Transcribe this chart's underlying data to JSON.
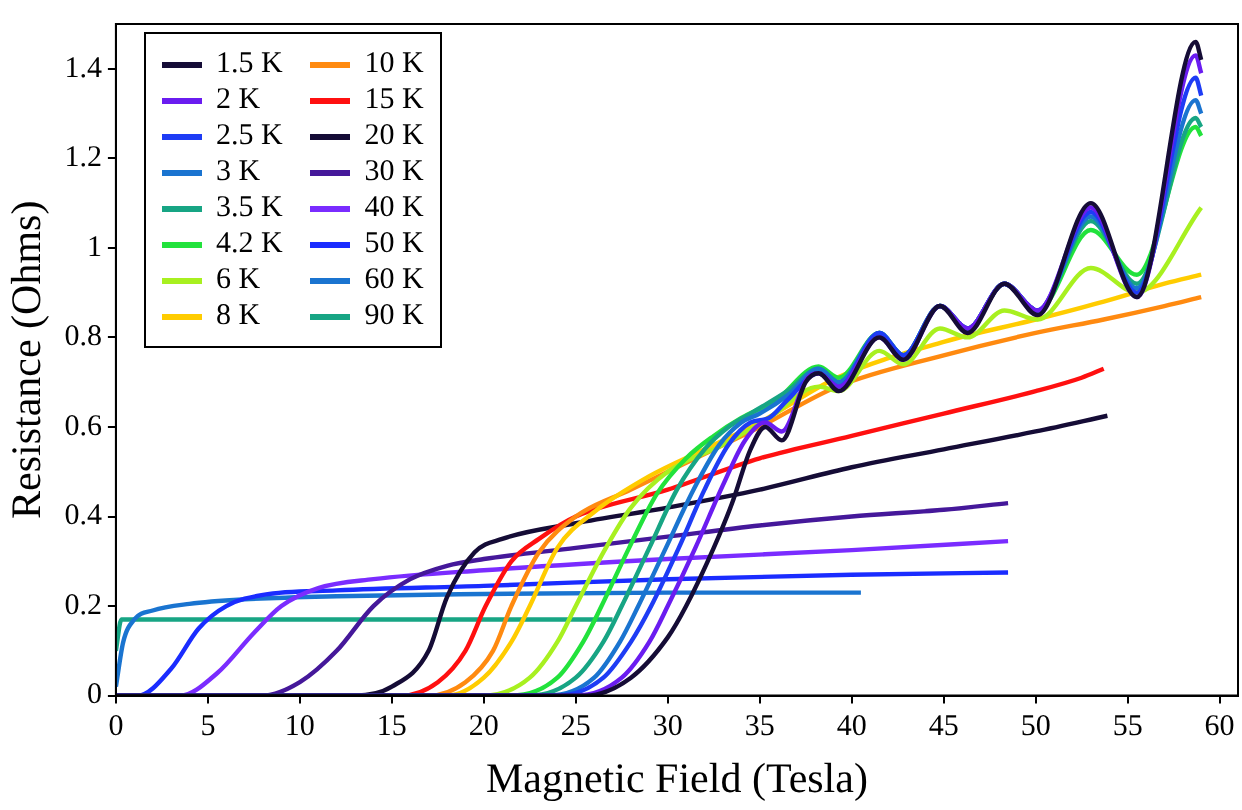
{
  "chart_data": {
    "type": "line",
    "xlabel": "Magnetic Field (Tesla)",
    "ylabel": "Resistance (Ohms)",
    "xlim": [
      0,
      61
    ],
    "ylim": [
      0,
      1.5
    ],
    "xticks": [
      0,
      5,
      10,
      15,
      20,
      25,
      30,
      35,
      40,
      45,
      50,
      55,
      60
    ],
    "yticks": [
      0,
      0.2,
      0.4,
      0.6,
      0.8,
      1,
      1.2,
      1.4
    ],
    "grid": false,
    "legend": "top left",
    "marker": "none",
    "line_style": "solid",
    "series": [
      {
        "name": "1.5 K",
        "color": "#150c36",
        "x": [
          0,
          25.5,
          28,
          30,
          31,
          32.5,
          33.5,
          34.5,
          35.3,
          36.2,
          37.5,
          38.2,
          39.3,
          41.5,
          42.8,
          44.8,
          46.3,
          48.3,
          50.1,
          53,
          55.5,
          58.7,
          59
        ],
        "values": [
          0,
          0,
          0.04,
          0.13,
          0.2,
          0.33,
          0.43,
          0.55,
          0.6,
          0.57,
          0.7,
          0.72,
          0.68,
          0.8,
          0.75,
          0.87,
          0.81,
          0.92,
          0.85,
          1.1,
          0.89,
          1.46,
          1.42
        ]
      },
      {
        "name": "2 K",
        "color": "#6a1cf0",
        "x": [
          0,
          25,
          27.5,
          29,
          30,
          31.5,
          33,
          34.2,
          35.3,
          36.2,
          37.6,
          38.2,
          39.3,
          41.5,
          42.8,
          44.8,
          46.3,
          48.3,
          50.1,
          53,
          55.5,
          58.7,
          59
        ],
        "values": [
          0,
          0,
          0.04,
          0.12,
          0.2,
          0.33,
          0.47,
          0.57,
          0.61,
          0.59,
          0.71,
          0.72,
          0.69,
          0.8,
          0.75,
          0.87,
          0.82,
          0.92,
          0.86,
          1.09,
          0.89,
          1.43,
          1.39
        ]
      },
      {
        "name": "2.5 K",
        "color": "#1e3cf5",
        "x": [
          0,
          24,
          26.5,
          28,
          29.1,
          30.6,
          32,
          33.3,
          34.5,
          35.5,
          36.5,
          38.2,
          39.3,
          41.5,
          42.8,
          44.8,
          46.3,
          48.3,
          50.1,
          53,
          55.5,
          58.7,
          59
        ],
        "values": [
          0,
          0,
          0.04,
          0.12,
          0.2,
          0.33,
          0.46,
          0.56,
          0.61,
          0.62,
          0.66,
          0.72,
          0.69,
          0.81,
          0.76,
          0.87,
          0.82,
          0.92,
          0.86,
          1.08,
          0.9,
          1.38,
          1.34
        ]
      },
      {
        "name": "3 K",
        "color": "#1a74d0",
        "x": [
          0,
          23.5,
          26,
          27.4,
          28.4,
          29.9,
          31.4,
          32.8,
          34,
          35,
          36.5,
          38.2,
          39.3,
          41.5,
          42.8,
          44.8,
          46.3,
          48.3,
          50.1,
          53,
          55.5,
          58.7,
          59
        ],
        "values": [
          0,
          0,
          0.04,
          0.12,
          0.2,
          0.33,
          0.46,
          0.56,
          0.61,
          0.63,
          0.67,
          0.73,
          0.7,
          0.81,
          0.76,
          0.87,
          0.82,
          0.92,
          0.86,
          1.07,
          0.91,
          1.33,
          1.3
        ]
      },
      {
        "name": "3.5 K",
        "color": "#17a584",
        "x": [
          0,
          22.5,
          25,
          26.5,
          27.5,
          29,
          30.5,
          32,
          33.3,
          34.5,
          36.5,
          38.2,
          39.3,
          41.5,
          42.8,
          44.8,
          46.3,
          48.3,
          50.1,
          53,
          55.5,
          58.7,
          59
        ],
        "values": [
          0,
          0,
          0.04,
          0.12,
          0.2,
          0.33,
          0.46,
          0.55,
          0.6,
          0.63,
          0.68,
          0.73,
          0.7,
          0.81,
          0.76,
          0.87,
          0.82,
          0.92,
          0.86,
          1.06,
          0.92,
          1.29,
          1.27
        ]
      },
      {
        "name": "4.2 K",
        "color": "#22e23c",
        "x": [
          0,
          21.5,
          24,
          25.4,
          26.4,
          27.9,
          29.4,
          31,
          32.5,
          34,
          35.9,
          38.2,
          39.3,
          41.5,
          42.8,
          44.8,
          46.3,
          48.3,
          50.1,
          53,
          55.5,
          58.7,
          59
        ],
        "values": [
          0,
          0,
          0.04,
          0.12,
          0.2,
          0.33,
          0.45,
          0.53,
          0.58,
          0.62,
          0.66,
          0.735,
          0.71,
          0.81,
          0.76,
          0.87,
          0.82,
          0.92,
          0.86,
          1.04,
          0.94,
          1.27,
          1.25
        ]
      },
      {
        "name": "6 K",
        "color": "#a8f020",
        "x": [
          0,
          20,
          22.5,
          24,
          25,
          26.5,
          28,
          30,
          33,
          35.5,
          38.2,
          39.3,
          41.5,
          42.8,
          44.8,
          46.3,
          48.3,
          50.1,
          53,
          55.5,
          59
        ],
        "values": [
          0,
          0,
          0.04,
          0.12,
          0.2,
          0.32,
          0.42,
          0.5,
          0.56,
          0.62,
          0.69,
          0.68,
          0.77,
          0.74,
          0.82,
          0.8,
          0.86,
          0.84,
          0.955,
          0.9,
          1.09
        ]
      },
      {
        "name": "8 K",
        "color": "#ffcc00",
        "x": [
          0,
          18,
          20,
          21.5,
          22.5,
          24,
          26,
          29,
          32,
          35,
          39.2,
          45,
          50,
          53.7,
          57,
          59
        ],
        "values": [
          0,
          0,
          0.04,
          0.12,
          0.2,
          0.33,
          0.41,
          0.49,
          0.55,
          0.61,
          0.71,
          0.79,
          0.84,
          0.88,
          0.92,
          0.94
        ]
      },
      {
        "name": "10 K",
        "color": "#ff8a10",
        "x": [
          0,
          17,
          19,
          20.5,
          21.5,
          23,
          25,
          28,
          31,
          35,
          39.2,
          45,
          50,
          53.7,
          57,
          59
        ],
        "values": [
          0,
          0,
          0.03,
          0.1,
          0.2,
          0.32,
          0.4,
          0.46,
          0.52,
          0.6,
          0.69,
          0.76,
          0.81,
          0.84,
          0.87,
          0.89
        ]
      },
      {
        "name": "15 K",
        "color": "#ff1010",
        "x": [
          0,
          15.5,
          17.5,
          19,
          20.1,
          21.5,
          23,
          25,
          30,
          35,
          40,
          45,
          50,
          52.5,
          53.7
        ],
        "values": [
          0,
          0,
          0.03,
          0.1,
          0.2,
          0.3,
          0.35,
          0.4,
          0.46,
          0.53,
          0.58,
          0.63,
          0.68,
          0.71,
          0.73
        ]
      },
      {
        "name": "20 K",
        "color": "#150c36",
        "x": [
          0,
          13,
          15,
          17,
          18,
          19.5,
          21,
          25,
          30,
          35,
          40,
          45,
          50,
          53.9
        ],
        "values": [
          0,
          0,
          0.02,
          0.1,
          0.22,
          0.32,
          0.35,
          0.385,
          0.42,
          0.46,
          0.51,
          0.55,
          0.59,
          0.625
        ]
      },
      {
        "name": "30 K",
        "color": "#45189a",
        "x": [
          0,
          8,
          10,
          12,
          14,
          16,
          18,
          20,
          25,
          30,
          35,
          40,
          45,
          48.5
        ],
        "values": [
          0,
          0,
          0.03,
          0.1,
          0.2,
          0.26,
          0.29,
          0.305,
          0.33,
          0.355,
          0.38,
          0.4,
          0.415,
          0.43
        ]
      },
      {
        "name": "40 K",
        "color": "#7a2cff",
        "x": [
          0,
          3.5,
          5.5,
          7.5,
          9,
          11,
          14,
          20,
          30,
          40,
          48.5
        ],
        "values": [
          0,
          0,
          0.05,
          0.14,
          0.2,
          0.24,
          0.26,
          0.28,
          0.305,
          0.325,
          0.345
        ]
      },
      {
        "name": "50 K",
        "color": "#1a2cff",
        "x": [
          0,
          1.2,
          3,
          4.5,
          6,
          8,
          12,
          20,
          30,
          40,
          48.5
        ],
        "values": [
          0,
          0,
          0.06,
          0.15,
          0.2,
          0.225,
          0.235,
          0.245,
          0.26,
          0.27,
          0.275
        ]
      },
      {
        "name": "60 K",
        "color": "#1a74d0",
        "x": [
          0,
          0.4,
          1,
          2,
          4,
          7,
          12,
          20,
          30,
          40.5
        ],
        "values": [
          0.02,
          0.12,
          0.17,
          0.19,
          0.205,
          0.215,
          0.222,
          0.227,
          0.23,
          0.23
        ]
      },
      {
        "name": "90 K",
        "color": "#17a584",
        "x": [
          0,
          0.3,
          27
        ],
        "values": [
          0.1,
          0.17,
          0.17
        ]
      }
    ]
  }
}
